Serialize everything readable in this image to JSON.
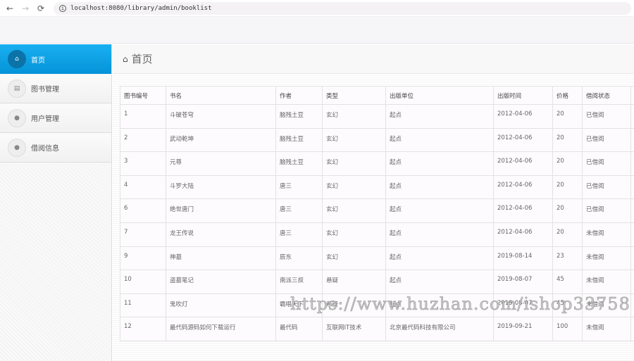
{
  "browser": {
    "url": "localhost:8080/library/admin/booklist",
    "back": "←",
    "forward": "→",
    "reload": "⟳"
  },
  "sidebar": {
    "items": [
      {
        "label": "首页",
        "icon": "home-icon",
        "glyph": "⌂",
        "active": true
      },
      {
        "label": "图书管理",
        "icon": "book-icon",
        "glyph": "▤",
        "active": false
      },
      {
        "label": "用户管理",
        "icon": "user-icon",
        "glyph": "●",
        "active": false
      },
      {
        "label": "借阅信息",
        "icon": "user-icon",
        "glyph": "●",
        "active": false
      }
    ]
  },
  "page": {
    "title": "首页",
    "title_icon": "⌂"
  },
  "table": {
    "headers": [
      "图书编号",
      "书名",
      "作者",
      "类型",
      "出版单位",
      "出版时间",
      "价格",
      "借阅状态",
      ""
    ],
    "rows": [
      [
        "1",
        "斗破苍穹",
        "脑残土豆",
        "玄幻",
        "起点",
        "2012-04-06",
        "20",
        "已借阅"
      ],
      [
        "2",
        "武动乾坤",
        "脑残土豆",
        "玄幻",
        "起点",
        "2012-04-06",
        "20",
        "已借阅"
      ],
      [
        "3",
        "元尊",
        "脑残土豆",
        "玄幻",
        "起点",
        "2012-04-06",
        "20",
        "已借阅"
      ],
      [
        "4",
        "斗罗大陆",
        "唐三",
        "玄幻",
        "起点",
        "2012-04-06",
        "20",
        "已借阅"
      ],
      [
        "6",
        "绝世唐门",
        "唐三",
        "玄幻",
        "起点",
        "2012-04-06",
        "20",
        "已借阅"
      ],
      [
        "7",
        "龙王传说",
        "唐三",
        "玄幻",
        "起点",
        "2012-04-06",
        "20",
        "未借阅"
      ],
      [
        "9",
        "神墓",
        "辰东",
        "玄幻",
        "起点",
        "2019-08-14",
        "23",
        "未借阅"
      ],
      [
        "10",
        "盗墓笔记",
        "南派三叔",
        "悬疑",
        "起点",
        "2019-08-07",
        "45",
        "未借阅"
      ],
      [
        "11",
        "鬼吹灯",
        "霸唱天下",
        "悬疑",
        "起点",
        "2019-08-07",
        "45",
        "未借阅"
      ],
      [
        "12",
        "最代码源码如何下载运行",
        "最代码",
        "互联网IT技术",
        "北京最代码科技有限公司",
        "2019-09-21",
        "100",
        "未借阅"
      ]
    ]
  },
  "watermark": "https://www.huzhan.com/ishop33758",
  "colors": {
    "accent": "#0a9ee3"
  }
}
